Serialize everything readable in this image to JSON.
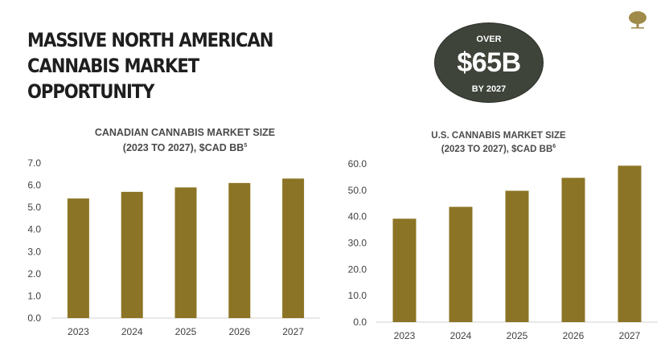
{
  "header": {
    "title_line1": "MASSIVE NORTH AMERICAN",
    "title_line2": "CANNABIS MARKET OPPORTUNITY"
  },
  "callout": {
    "over": "OVER",
    "amount": "$65B",
    "by": "BY 2027"
  },
  "colors": {
    "bar": "#8b7425",
    "oval": "#3f443a",
    "axis": "#d0d0d0",
    "logo": "#a08a4a"
  },
  "chart_data": [
    {
      "type": "bar",
      "title": "CANADIAN CANNABIS MARKET SIZE",
      "subtitle": "(2023 TO 2027), $CAD BB",
      "footnote": "5",
      "categories": [
        "2023",
        "2024",
        "2025",
        "2026",
        "2027"
      ],
      "values": [
        5.4,
        5.7,
        5.9,
        6.1,
        6.3
      ],
      "ylim": [
        0,
        7
      ],
      "yticks": [
        "0.0",
        "1.0",
        "2.0",
        "3.0",
        "4.0",
        "5.0",
        "6.0",
        "7.0"
      ],
      "grid": false
    },
    {
      "type": "bar",
      "title": "U.S. CANNABIS MARKET SIZE",
      "subtitle": "(2023 TO 2027), $CAD BB",
      "footnote": "6",
      "categories": [
        "2023",
        "2024",
        "2025",
        "2026",
        "2027"
      ],
      "values": [
        39.2,
        43.7,
        49.8,
        54.7,
        59.3
      ],
      "ylim": [
        0,
        60
      ],
      "yticks": [
        "0.0",
        "10.0",
        "20.0",
        "30.0",
        "40.0",
        "50.0",
        "60.0"
      ],
      "grid": false
    }
  ]
}
